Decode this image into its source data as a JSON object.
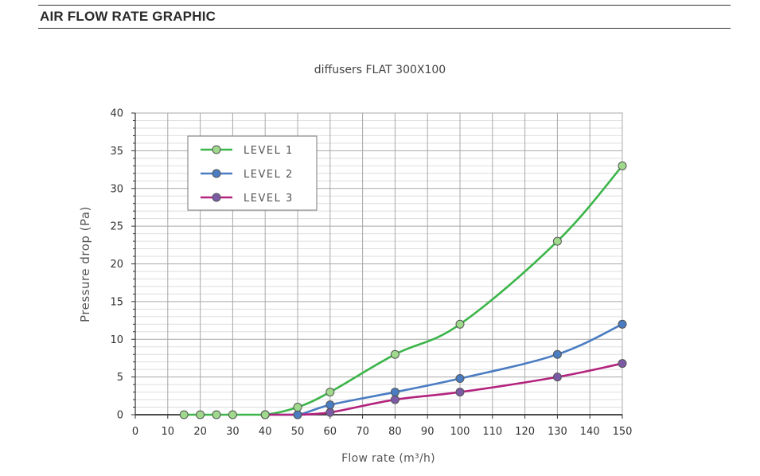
{
  "header": {
    "title": "AIR FLOW RATE GRAPHIC"
  },
  "chart_data": {
    "type": "line",
    "title": "diffusers FLAT 300X100",
    "xlabel": "Flow rate (m³/h)",
    "ylabel": "Pressure drop (Pa)",
    "xlim": [
      0,
      150
    ],
    "ylim": [
      0,
      40
    ],
    "x_ticks": [
      0,
      10,
      20,
      30,
      40,
      50,
      60,
      70,
      80,
      90,
      100,
      110,
      120,
      130,
      140,
      150
    ],
    "y_ticks": [
      0,
      5,
      10,
      15,
      20,
      25,
      30,
      35,
      40
    ],
    "x_tick_labels": [
      "0",
      "10",
      "20",
      "30",
      "40",
      "50",
      "60",
      "70",
      "80",
      "90",
      "100",
      "110",
      "120",
      "130",
      "140",
      "150"
    ],
    "y_tick_labels": [
      "0",
      "5",
      "10",
      "15",
      "20",
      "25",
      "30",
      "35",
      "40"
    ],
    "grid": true,
    "legend_position": "top-left",
    "series": [
      {
        "name": "LEVEL 1",
        "color": "#3cb54a",
        "marker_fill": "#9fd98c",
        "x": [
          15,
          20,
          25,
          30,
          40,
          50,
          60,
          80,
          100,
          130,
          150
        ],
        "y": [
          0,
          0,
          0,
          0,
          0,
          1,
          3,
          8,
          12,
          23,
          33
        ]
      },
      {
        "name": "LEVEL 2",
        "color": "#4a7cc2",
        "marker_fill": "#4a7cc2",
        "x": [
          40,
          50,
          60,
          80,
          100,
          130,
          150
        ],
        "y": [
          0,
          0,
          1.3,
          3,
          4.8,
          8,
          12
        ]
      },
      {
        "name": "LEVEL 3",
        "color": "#b3237d",
        "marker_fill": "#7b5aa6",
        "x": [
          40,
          50,
          60,
          80,
          100,
          130,
          150
        ],
        "y": [
          0,
          0,
          0.3,
          2,
          3,
          5,
          6.8
        ]
      }
    ]
  }
}
